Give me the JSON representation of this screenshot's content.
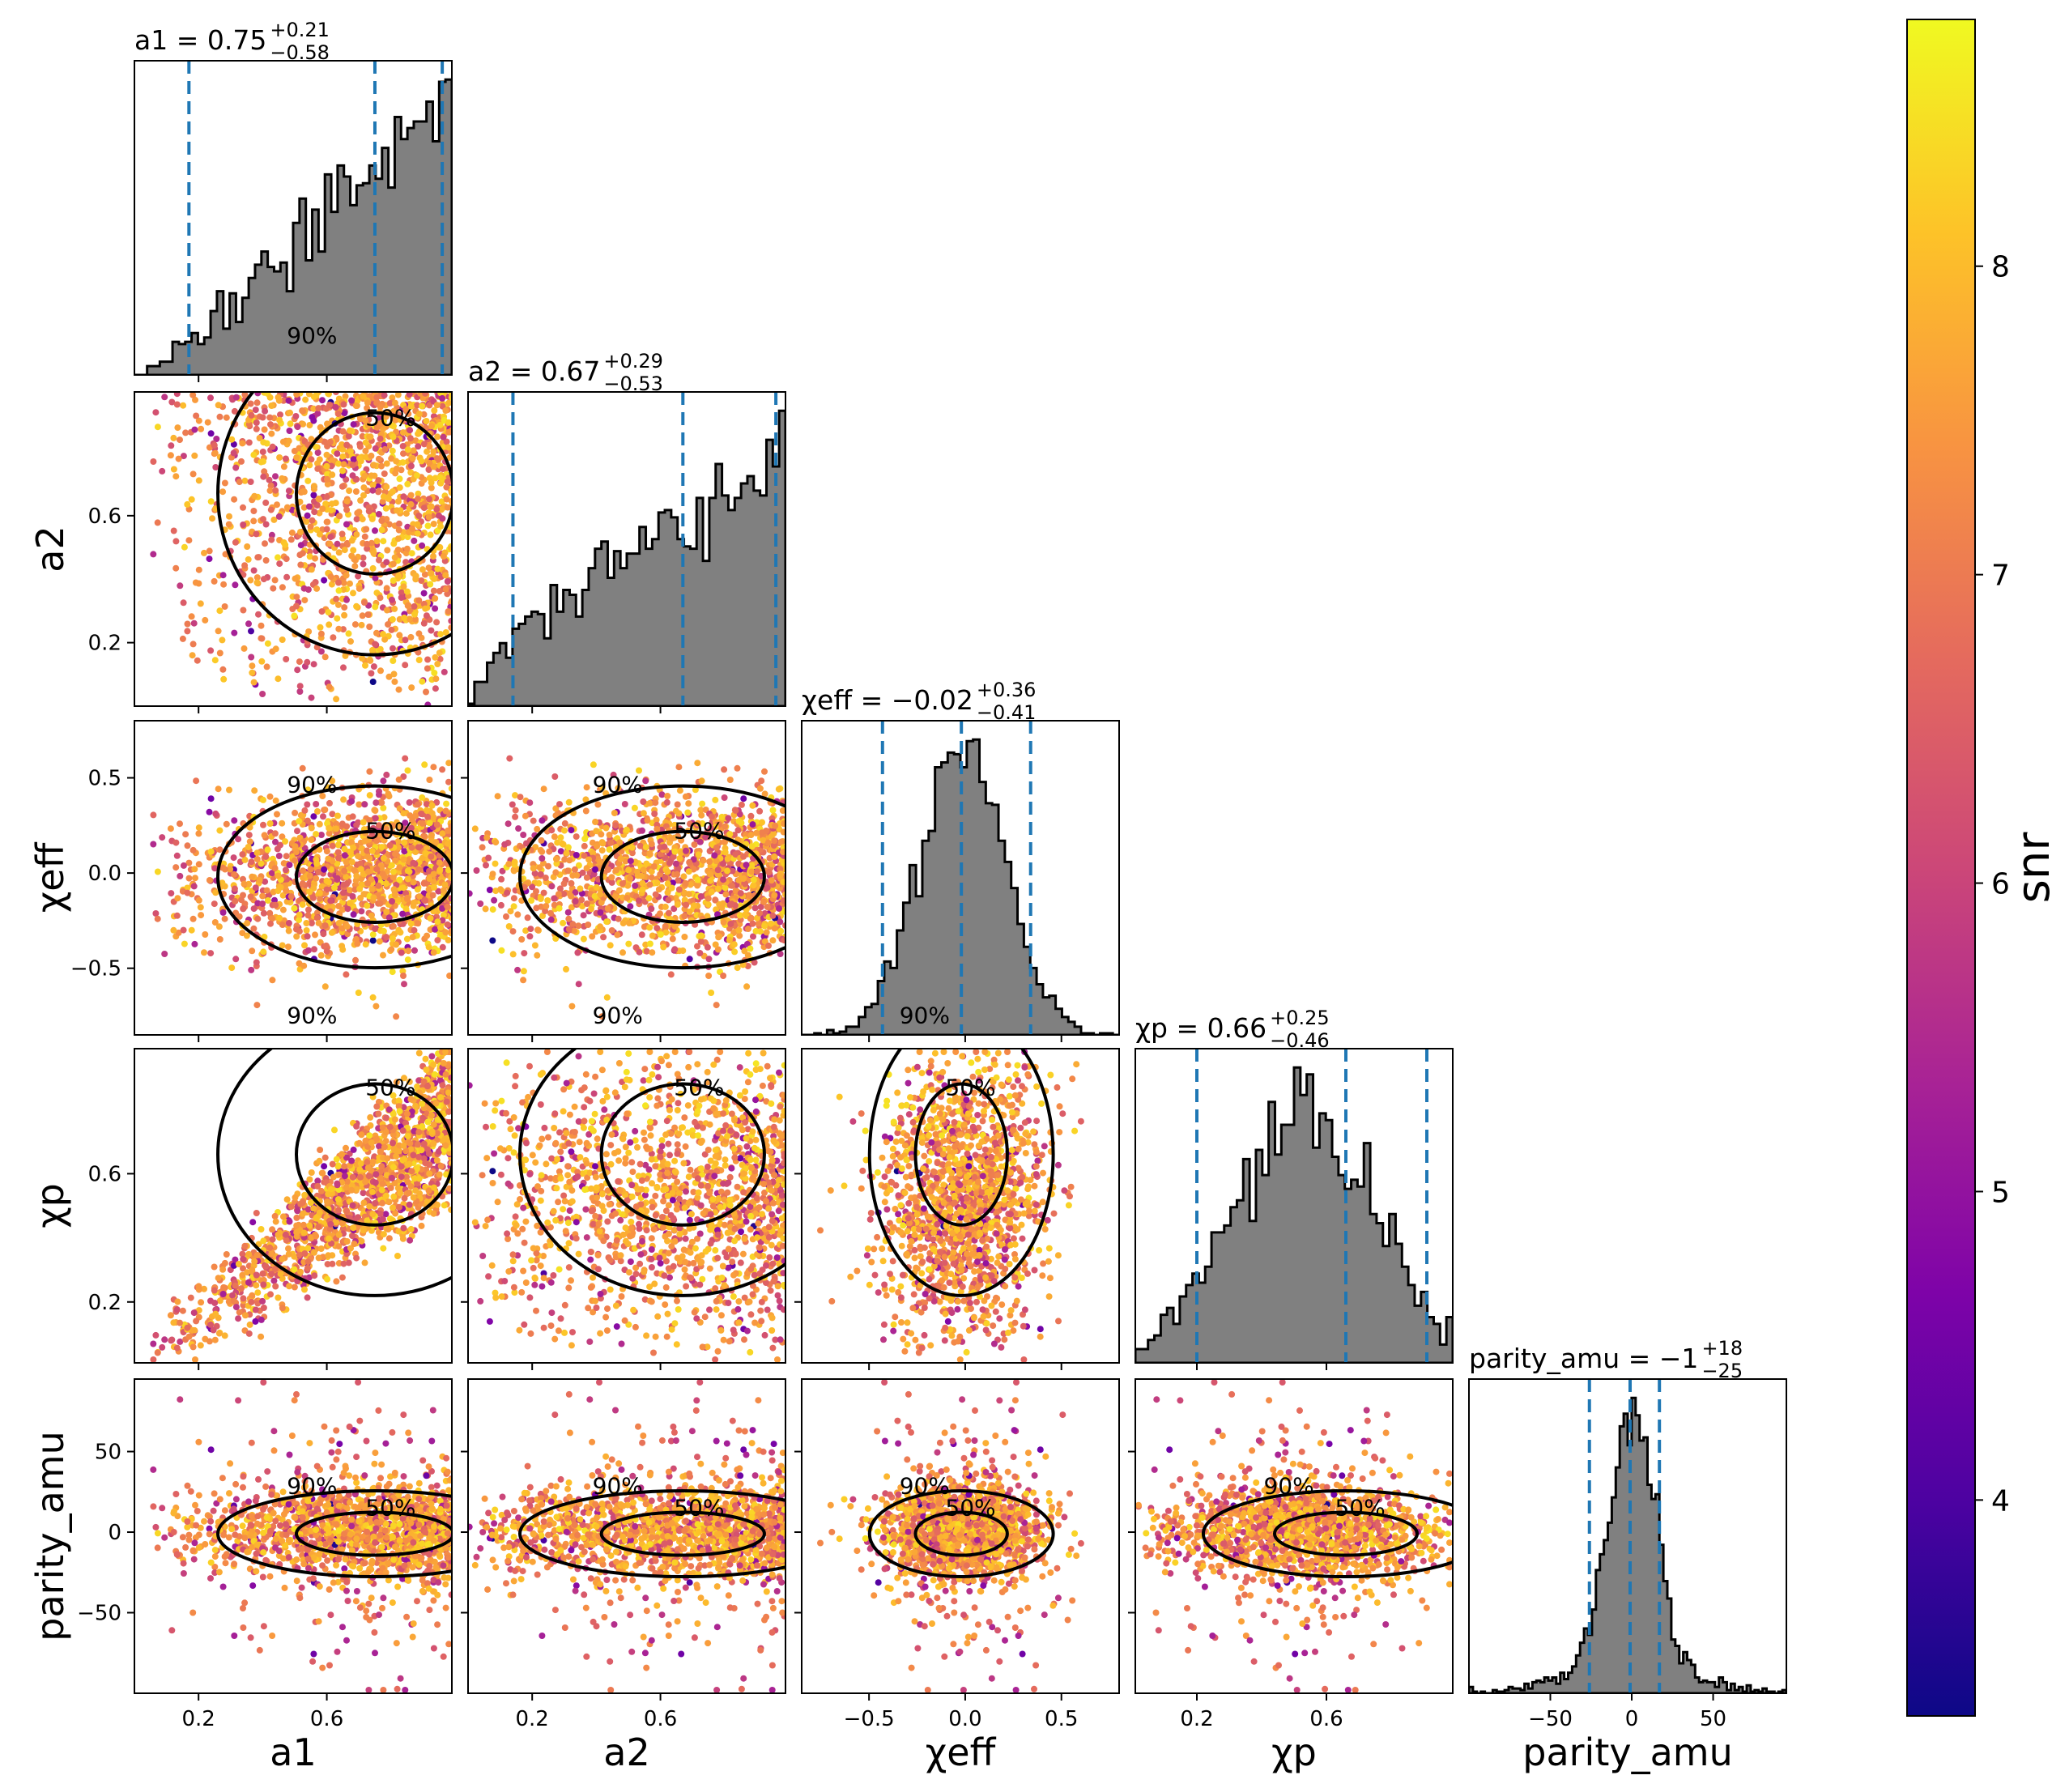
{
  "chart_data": {
    "type": "corner",
    "parameters": [
      {
        "key": "a1",
        "tex": [
          "a",
          "1",
          ""
        ],
        "range": [
          0.0,
          0.99
        ],
        "ticks": [
          0.2,
          0.6
        ],
        "tick_labels": [
          "0.2",
          "0.6"
        ],
        "median": 0.75,
        "lower": 0.17,
        "upper": 0.96
      },
      {
        "key": "a2",
        "tex": [
          "a",
          "2",
          ""
        ],
        "range": [
          0.0,
          0.99
        ],
        "ticks": [
          0.2,
          0.6
        ],
        "tick_labels": [
          "0.2",
          "0.6"
        ],
        "median": 0.67,
        "lower": 0.14,
        "upper": 0.96
      },
      {
        "key": "chi_eff",
        "tex": [
          "χ",
          "eff",
          "upright"
        ],
        "range": [
          -0.85,
          0.8
        ],
        "ticks": [
          -0.5,
          0.0,
          0.5
        ],
        "tick_labels": [
          "−0.5",
          "0.0",
          "0.5"
        ],
        "median": -0.02,
        "lower": -0.43,
        "upper": 0.34
      },
      {
        "key": "chi_p",
        "tex": [
          "χ",
          "p",
          ""
        ],
        "range": [
          0.01,
          0.99
        ],
        "ticks": [
          0.2,
          0.6
        ],
        "tick_labels": [
          "0.2",
          "0.6"
        ],
        "median": 0.66,
        "lower": 0.2,
        "upper": 0.91
      },
      {
        "key": "parity_amu",
        "tex": [
          "parity_amu",
          "",
          ""
        ],
        "range": [
          -100,
          95
        ],
        "ticks": [
          -50,
          0,
          50
        ],
        "tick_labels": [
          "−50",
          "0",
          "50"
        ],
        "median": -1,
        "lower": -26,
        "upper": 17
      }
    ],
    "axis_labels": {
      "a1": "a1",
      "a2": "a2",
      "chi_eff": "χeff",
      "chi_p": "χp",
      "parity_amu": "parity_amu"
    },
    "titles": {
      "a1": {
        "name": "a1",
        "value": "0.75",
        "plus": "+0.21",
        "minus": "−0.58"
      },
      "a2": {
        "name": "a2",
        "value": "0.67",
        "plus": "+0.29",
        "minus": "−0.53"
      },
      "chi_eff": {
        "name": "χeff",
        "value": "−0.02",
        "plus": "+0.36",
        "minus": "−0.41"
      },
      "chi_p": {
        "name": "χp",
        "value": "0.66",
        "plus": "+0.25",
        "minus": "−0.46"
      },
      "parity_amu": {
        "name": "parity_amu",
        "value": "−1",
        "plus": "+18",
        "minus": "−25"
      }
    },
    "contour_labels": [
      "50%",
      "90%"
    ],
    "colorbar": {
      "label": "snr",
      "range": [
        3.3,
        8.8
      ],
      "ticks": [
        4,
        5,
        6,
        7,
        8
      ],
      "tick_labels": [
        "4",
        "5",
        "6",
        "7",
        "8"
      ],
      "colormap": "plasma"
    },
    "histogram_color": "#808080",
    "quantile_line_color": "#1f77b4",
    "contour_color": "#000000"
  }
}
